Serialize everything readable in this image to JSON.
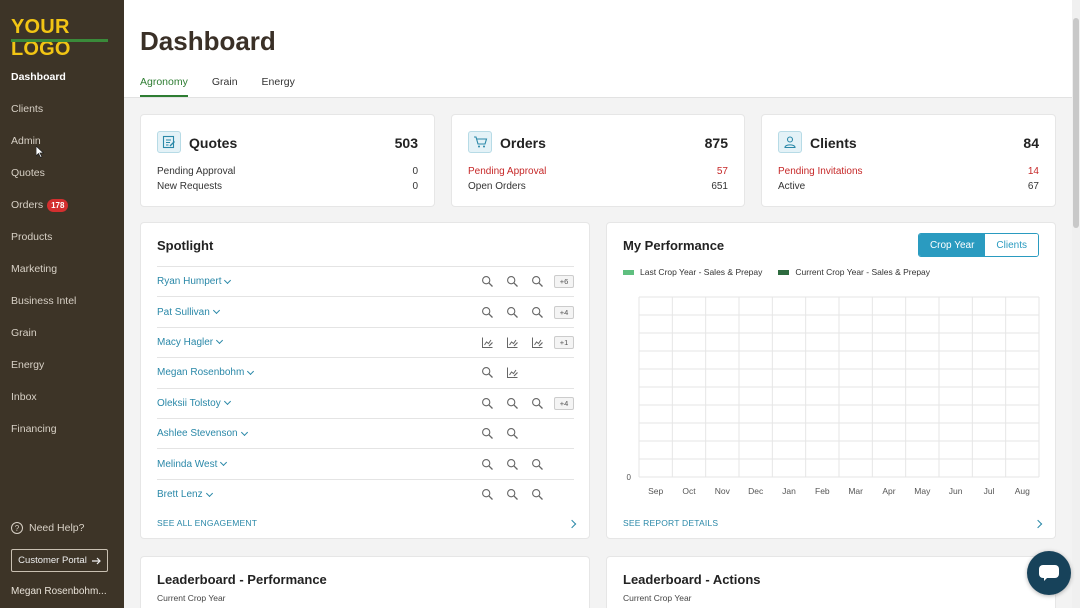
{
  "sidebar": {
    "logo": "YOUR LOGO",
    "items": [
      {
        "label": "Dashboard",
        "active": true
      },
      {
        "label": "Clients"
      },
      {
        "label": "Admin"
      },
      {
        "label": "Quotes"
      },
      {
        "label": "Orders",
        "badge": "178"
      },
      {
        "label": "Products"
      },
      {
        "label": "Marketing"
      },
      {
        "label": "Business Intel"
      },
      {
        "label": "Grain"
      },
      {
        "label": "Energy"
      },
      {
        "label": "Inbox"
      },
      {
        "label": "Financing"
      }
    ],
    "help": "Need Help?",
    "portal": "Customer Portal",
    "user": "Megan Rosenbohm..."
  },
  "header": {
    "title": "Dashboard",
    "tabs": [
      "Agronomy",
      "Grain",
      "Energy"
    ],
    "active_tab": "Agronomy"
  },
  "stats": {
    "quotes": {
      "title": "Quotes",
      "total": "503",
      "rows": [
        {
          "label": "Pending Approval",
          "value": "0"
        },
        {
          "label": "New Requests",
          "value": "0"
        }
      ]
    },
    "orders": {
      "title": "Orders",
      "total": "875",
      "rows": [
        {
          "label": "Pending Approval",
          "value": "57"
        },
        {
          "label": "Open Orders",
          "value": "651"
        }
      ]
    },
    "clients": {
      "title": "Clients",
      "total": "84",
      "rows": [
        {
          "label": "Pending Invitations",
          "value": "14"
        },
        {
          "label": "Active",
          "value": "67"
        }
      ]
    }
  },
  "spotlight": {
    "title": "Spotlight",
    "rows": [
      {
        "name": "Ryan Humpert",
        "icons": [
          "search-icon",
          "search-icon",
          "search-icon"
        ],
        "more": "+6"
      },
      {
        "name": "Pat Sullivan",
        "icons": [
          "search-icon",
          "search-icon",
          "search-icon"
        ],
        "more": "+4"
      },
      {
        "name": "Macy Hagler",
        "icons": [
          "chart-edit-icon",
          "chart-edit-icon",
          "chart-edit-icon"
        ],
        "more": "+1"
      },
      {
        "name": "Megan Rosenbohm",
        "icons": [
          "search-icon",
          "chart-edit-icon"
        ],
        "more": ""
      },
      {
        "name": "Oleksii Tolstoy",
        "icons": [
          "search-icon",
          "search-icon",
          "search-icon"
        ],
        "more": "+4"
      },
      {
        "name": "Ashlee Stevenson",
        "icons": [
          "search-icon",
          "search-icon"
        ],
        "more": ""
      },
      {
        "name": "Melinda West",
        "icons": [
          "search-icon",
          "search-icon",
          "search-icon"
        ],
        "more": ""
      },
      {
        "name": "Brett Lenz",
        "icons": [
          "search-icon",
          "search-icon",
          "search-icon"
        ],
        "more": ""
      }
    ],
    "link": "SEE ALL ENGAGEMENT"
  },
  "performance": {
    "title": "My Performance",
    "toggle": [
      "Crop Year",
      "Clients"
    ],
    "active_toggle": "Crop Year",
    "link": "SEE REPORT DETAILS",
    "colors": {
      "last": "#5fbf7f",
      "current": "#2e6b3f"
    }
  },
  "chart_data": {
    "type": "bar",
    "categories": [
      "Sep",
      "Oct",
      "Nov",
      "Dec",
      "Jan",
      "Feb",
      "Mar",
      "Apr",
      "May",
      "Jun",
      "Jul",
      "Aug"
    ],
    "series": [
      {
        "name": "Last Crop Year - Sales & Prepay",
        "values": [
          0,
          0,
          0,
          0,
          0,
          0,
          0,
          0,
          0,
          0,
          0,
          0
        ]
      },
      {
        "name": "Current Crop Year - Sales & Prepay",
        "values": [
          0,
          0,
          0,
          0,
          0,
          0,
          0,
          0,
          0,
          0,
          0,
          0
        ]
      }
    ],
    "y_tick": "0",
    "grid": true,
    "legend": "top-left"
  },
  "leaderboards": [
    {
      "title": "Leaderboard - Performance",
      "subtitle": "Current Crop Year"
    },
    {
      "title": "Leaderboard - Actions",
      "subtitle": "Current Crop Year"
    }
  ]
}
